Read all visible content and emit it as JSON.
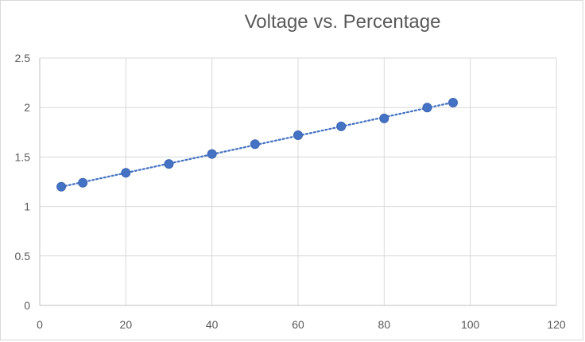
{
  "chart_data": {
    "type": "scatter",
    "title": "Voltage vs. Percentage",
    "xlabel": "",
    "ylabel": "",
    "xlim": [
      0,
      120
    ],
    "ylim": [
      0,
      2.5
    ],
    "x_ticks": [
      "0",
      "20",
      "40",
      "60",
      "80",
      "100",
      "120"
    ],
    "y_ticks": [
      "0",
      "0.5",
      "1",
      "1.5",
      "2",
      "2.5"
    ],
    "grid": true,
    "legend": "none",
    "marker_color": "#4472c4",
    "trendline": {
      "type": "linear",
      "style": "dotted",
      "color": "#4472c4"
    },
    "series": [
      {
        "x": [
          5,
          10,
          20,
          30,
          40,
          50,
          60,
          70,
          80,
          90,
          96
        ],
        "y": [
          1.2,
          1.24,
          1.34,
          1.43,
          1.53,
          1.63,
          1.72,
          1.81,
          1.89,
          2.0,
          2.05
        ]
      }
    ]
  }
}
